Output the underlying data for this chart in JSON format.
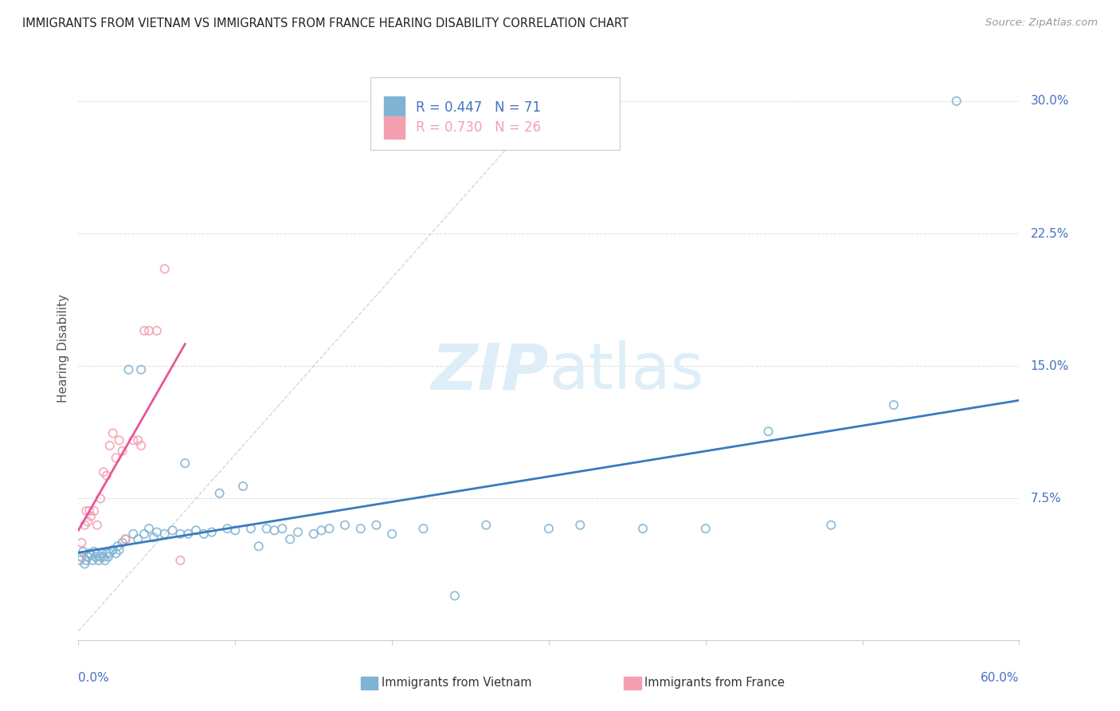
{
  "title": "IMMIGRANTS FROM VIETNAM VS IMMIGRANTS FROM FRANCE HEARING DISABILITY CORRELATION CHART",
  "source": "Source: ZipAtlas.com",
  "ylabel": "Hearing Disability",
  "yticks": [
    0.0,
    0.075,
    0.15,
    0.225,
    0.3
  ],
  "ytick_labels": [
    "",
    "7.5%",
    "15.0%",
    "22.5%",
    "30.0%"
  ],
  "xlim": [
    0.0,
    0.6
  ],
  "ylim": [
    -0.005,
    0.325
  ],
  "vietnam_color": "#7fb3d3",
  "vietnam_edge": "#7fb3d3",
  "france_color": "#f5a0b0",
  "france_edge": "#f5a0b0",
  "vietnam_R": 0.447,
  "vietnam_N": 71,
  "france_R": 0.73,
  "france_N": 26,
  "diagonal_color": "#cccccc",
  "vietnam_line_color": "#3a7abf",
  "france_line_color": "#e8559a",
  "label_color": "#4472c4",
  "watermark_color": "#ddeef8",
  "vietnam_points_x": [
    0.001,
    0.002,
    0.003,
    0.004,
    0.005,
    0.006,
    0.007,
    0.008,
    0.009,
    0.01,
    0.011,
    0.012,
    0.013,
    0.014,
    0.015,
    0.016,
    0.017,
    0.018,
    0.019,
    0.02,
    0.022,
    0.024,
    0.025,
    0.026,
    0.028,
    0.03,
    0.032,
    0.035,
    0.038,
    0.04,
    0.042,
    0.045,
    0.048,
    0.05,
    0.055,
    0.06,
    0.065,
    0.068,
    0.07,
    0.075,
    0.08,
    0.085,
    0.09,
    0.095,
    0.1,
    0.105,
    0.11,
    0.115,
    0.12,
    0.125,
    0.13,
    0.135,
    0.14,
    0.15,
    0.155,
    0.16,
    0.17,
    0.18,
    0.19,
    0.2,
    0.22,
    0.24,
    0.26,
    0.3,
    0.32,
    0.36,
    0.4,
    0.44,
    0.48,
    0.52,
    0.56
  ],
  "vietnam_points_y": [
    0.04,
    0.042,
    0.045,
    0.038,
    0.04,
    0.042,
    0.044,
    0.043,
    0.04,
    0.045,
    0.042,
    0.044,
    0.04,
    0.042,
    0.044,
    0.042,
    0.04,
    0.044,
    0.042,
    0.044,
    0.046,
    0.044,
    0.048,
    0.046,
    0.05,
    0.052,
    0.148,
    0.055,
    0.052,
    0.148,
    0.055,
    0.058,
    0.053,
    0.056,
    0.055,
    0.057,
    0.055,
    0.095,
    0.055,
    0.057,
    0.055,
    0.056,
    0.078,
    0.058,
    0.057,
    0.082,
    0.058,
    0.048,
    0.058,
    0.057,
    0.058,
    0.052,
    0.056,
    0.055,
    0.057,
    0.058,
    0.06,
    0.058,
    0.06,
    0.055,
    0.058,
    0.02,
    0.06,
    0.058,
    0.06,
    0.058,
    0.058,
    0.113,
    0.06,
    0.128,
    0.3
  ],
  "france_points_x": [
    0.001,
    0.002,
    0.004,
    0.005,
    0.006,
    0.007,
    0.008,
    0.01,
    0.012,
    0.014,
    0.016,
    0.018,
    0.02,
    0.022,
    0.024,
    0.026,
    0.028,
    0.03,
    0.035,
    0.038,
    0.04,
    0.042,
    0.045,
    0.05,
    0.055,
    0.065
  ],
  "france_points_y": [
    0.042,
    0.05,
    0.06,
    0.068,
    0.062,
    0.068,
    0.065,
    0.068,
    0.06,
    0.075,
    0.09,
    0.088,
    0.105,
    0.112,
    0.098,
    0.108,
    0.102,
    0.052,
    0.108,
    0.108,
    0.105,
    0.17,
    0.17,
    0.17,
    0.205,
    0.04
  ]
}
